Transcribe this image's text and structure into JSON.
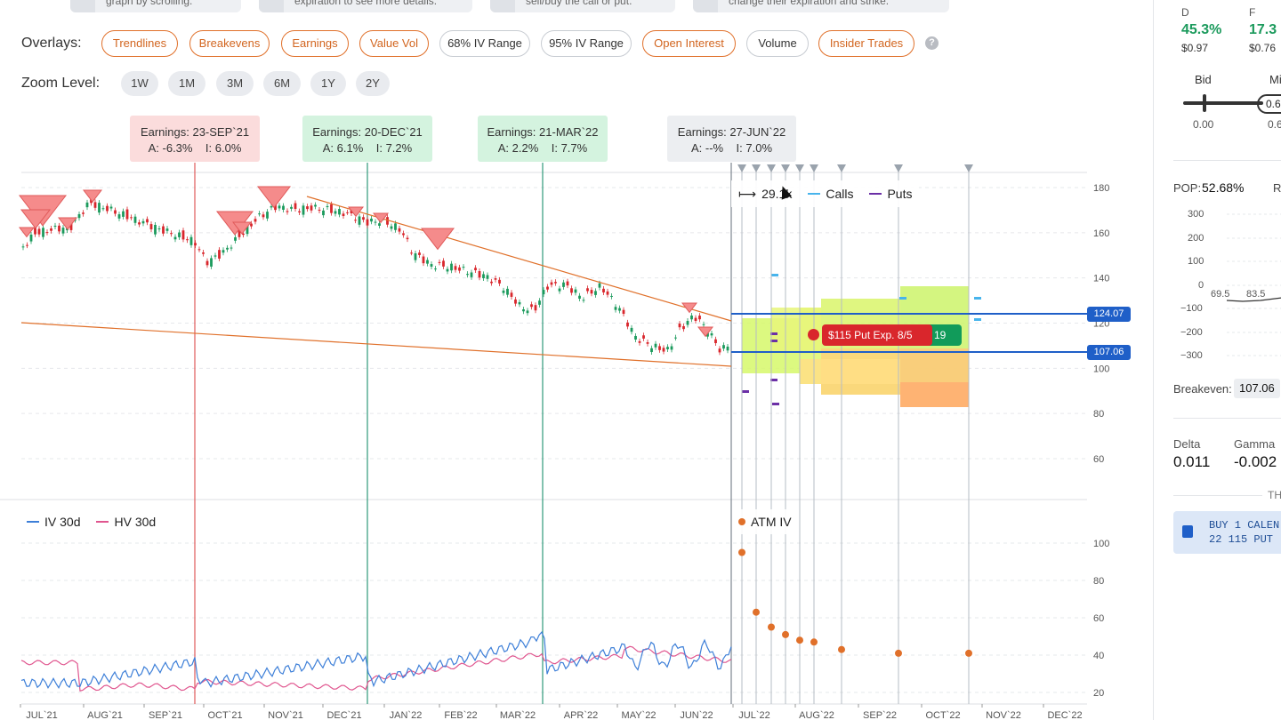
{
  "hints": [
    {
      "text": "graph by scrolling."
    },
    {
      "text": "expiration to see more details."
    },
    {
      "text": "sell/buy the call or put."
    },
    {
      "text": "change their expiration and strike."
    }
  ],
  "overlays": {
    "label": "Overlays:",
    "items": [
      {
        "label": "Trendlines",
        "active": true
      },
      {
        "label": "Breakevens",
        "active": true
      },
      {
        "label": "Earnings",
        "active": true
      },
      {
        "label": "Value Vol",
        "active": true
      },
      {
        "label": "68% IV Range",
        "active": false
      },
      {
        "label": "95% IV Range",
        "active": false
      },
      {
        "label": "Open Interest",
        "active": true
      },
      {
        "label": "Volume",
        "active": false
      },
      {
        "label": "Insider Trades",
        "active": true
      }
    ],
    "help": "?"
  },
  "zoom": {
    "label": "Zoom Level:",
    "items": [
      "1W",
      "1M",
      "3M",
      "6M",
      "1Y",
      "2Y"
    ]
  },
  "earnings": [
    {
      "title": "Earnings: 23-SEP`21",
      "detail": "A: -6.3%    I: 6.0%"
    },
    {
      "title": "Earnings: 20-DEC`21",
      "detail": "A: 6.1%    I: 7.2%"
    },
    {
      "title": "Earnings: 21-MAR`22",
      "detail": "A: 2.2%    I: 7.7%"
    },
    {
      "title": "Earnings: 27-JUN`22",
      "detail": "A: --%    I: 7.0%"
    }
  ],
  "price_axis": [
    "180",
    "160",
    "140",
    "120",
    "100",
    "80",
    "60"
  ],
  "iv_axis": [
    "100",
    "80",
    "60",
    "40",
    "20"
  ],
  "months": [
    "JUL`21",
    "AUG`21",
    "SEP`21",
    "OCT`21",
    "NOV`21",
    "DEC`21",
    "JAN`22",
    "FEB`22",
    "MAR`22",
    "APR`22",
    "MAY`22",
    "JUN`22",
    "JUL`22",
    "AUG`22",
    "SEP`22",
    "OCT`22",
    "NOV`22",
    "DEC`22"
  ],
  "chart_legend": {
    "range": "29.1k",
    "calls": "Calls",
    "puts": "Puts"
  },
  "price_tags": {
    "upper": "124.07",
    "lower": "107.06"
  },
  "put_tag": {
    "label": "$115 Put Exp. 8/5",
    "extra": "19"
  },
  "iv_legend": {
    "iv": "IV 30d",
    "hv": "HV 30d",
    "atm": "ATM IV"
  },
  "colors": {
    "orange": "#e0702a",
    "iv": "#3d7fd8",
    "hv": "#e0568f",
    "blue": "#1f5fc8",
    "red": "#d9262c",
    "green": "#119b5a"
  },
  "panel": {
    "d_label": "D",
    "d_value": "45.3%",
    "d_price": "$0.97",
    "f_label": "F",
    "f_value": "17.3",
    "f_price": "$0.76",
    "bid_label": "Bid",
    "mid_label": "Mi",
    "bid_value": "0.00",
    "mid_value": "0.6",
    "slider_value": "0.6",
    "pop_label": "POP:",
    "pop_value": "52.68%",
    "r_label": "R",
    "pnl_axis": [
      "300",
      "200",
      "100",
      "0",
      "−100",
      "−200",
      "−300"
    ],
    "pnl_x": [
      "69.5",
      "83.5"
    ],
    "breakeven_label": "Breakeven:",
    "breakeven_value": "107.06",
    "delta_label": "Delta",
    "delta_value": "0.011",
    "gamma_label": "Gamma",
    "gamma_value": "-0.002",
    "section_label": "TH",
    "order_line1": "BUY 1 CALEN",
    "order_line2": "22 115 PUT ("
  }
}
